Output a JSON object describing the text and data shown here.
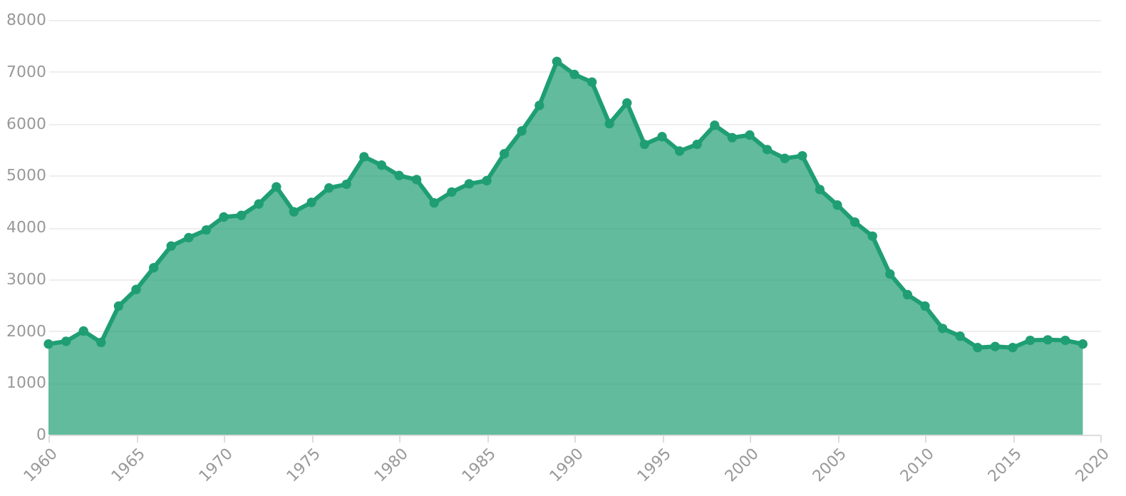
{
  "chart_data": {
    "type": "area",
    "x": [
      1960,
      1961,
      1962,
      1963,
      1964,
      1965,
      1966,
      1967,
      1968,
      1969,
      1970,
      1971,
      1972,
      1973,
      1974,
      1975,
      1976,
      1977,
      1978,
      1979,
      1980,
      1981,
      1982,
      1983,
      1984,
      1985,
      1986,
      1987,
      1988,
      1989,
      1990,
      1991,
      1992,
      1993,
      1994,
      1995,
      1996,
      1997,
      1998,
      1999,
      2000,
      2001,
      2002,
      2003,
      2004,
      2005,
      2006,
      2007,
      2008,
      2009,
      2010,
      2011,
      2012,
      2013,
      2014,
      2015,
      2016,
      2017,
      2018,
      2019
    ],
    "series": [
      {
        "color": "#1f9e74",
        "values": [
          1750,
          1800,
          2000,
          1780,
          2480,
          2800,
          3220,
          3640,
          3800,
          3950,
          4200,
          4230,
          4450,
          4780,
          4300,
          4480,
          4760,
          4830,
          5360,
          5200,
          5000,
          4920,
          4470,
          4680,
          4840,
          4900,
          5420,
          5860,
          6350,
          7200,
          6950,
          6800,
          6000,
          6400,
          5600,
          5750,
          5470,
          5600,
          5970,
          5730,
          5780,
          5500,
          5330,
          5380,
          4730,
          4430,
          4100,
          3830,
          3100,
          2700,
          2480,
          2050,
          1900,
          1680,
          1700,
          1680,
          1820,
          1830,
          1820,
          1750
        ]
      }
    ],
    "xlim": [
      1960,
      2020
    ],
    "xticks": [
      1960,
      1965,
      1970,
      1975,
      1980,
      1985,
      1990,
      1995,
      2000,
      2005,
      2010,
      2015,
      2020
    ],
    "ylim": [
      0,
      8000
    ],
    "yticks": [
      0,
      1000,
      2000,
      3000,
      4000,
      5000,
      6000,
      7000,
      8000
    ],
    "grid": "y",
    "marker": "circle",
    "legend": false
  }
}
